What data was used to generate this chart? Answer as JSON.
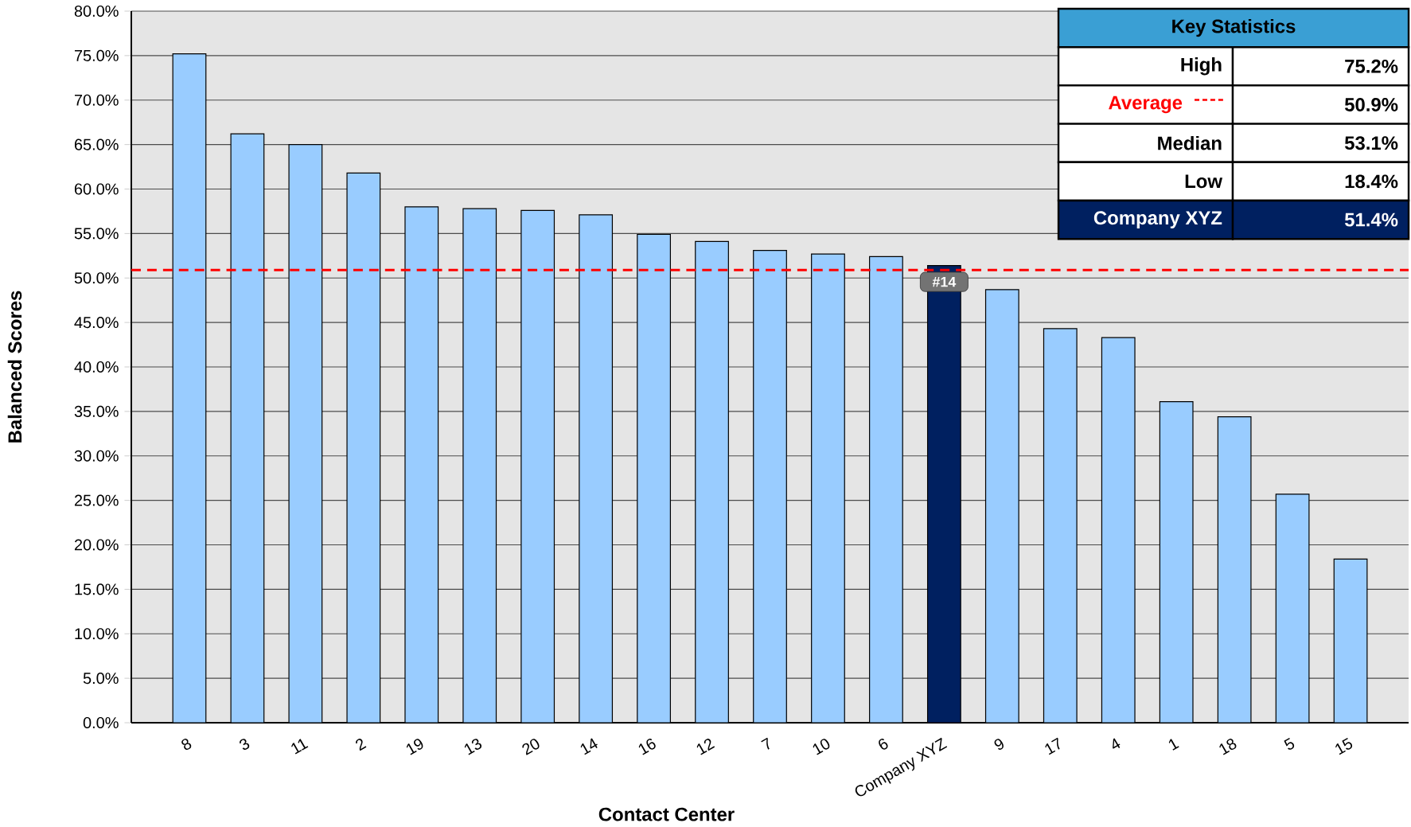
{
  "chart_data": {
    "type": "bar",
    "xlabel": "Contact Center",
    "ylabel": "Balanced Scores",
    "categories": [
      "8",
      "3",
      "11",
      "2",
      "19",
      "13",
      "20",
      "14",
      "16",
      "12",
      "7",
      "10",
      "6",
      "Company XYZ",
      "9",
      "17",
      "4",
      "1",
      "18",
      "5",
      "15"
    ],
    "values": [
      75.2,
      66.2,
      65.0,
      61.8,
      58.0,
      57.8,
      57.6,
      57.1,
      54.9,
      54.1,
      53.1,
      52.7,
      52.4,
      51.4,
      48.7,
      44.3,
      43.3,
      36.1,
      34.4,
      25.7,
      18.4
    ],
    "colors": [
      "#99ccff",
      "#99ccff",
      "#99ccff",
      "#99ccff",
      "#99ccff",
      "#99ccff",
      "#99ccff",
      "#99ccff",
      "#99ccff",
      "#99ccff",
      "#99ccff",
      "#99ccff",
      "#99ccff",
      "#002060",
      "#99ccff",
      "#99ccff",
      "#99ccff",
      "#99ccff",
      "#99ccff",
      "#99ccff",
      "#99ccff"
    ],
    "ylim": [
      0,
      80
    ],
    "yticks": [
      {
        "value": 0,
        "label": "0.0%"
      },
      {
        "value": 5,
        "label": "5.0%"
      },
      {
        "value": 10,
        "label": "10.0%"
      },
      {
        "value": 15,
        "label": "15.0%"
      },
      {
        "value": 20,
        "label": "20.0%"
      },
      {
        "value": 25,
        "label": "25.0%"
      },
      {
        "value": 30,
        "label": "30.0%"
      },
      {
        "value": 35,
        "label": "35.0%"
      },
      {
        "value": 40,
        "label": "40.0%"
      },
      {
        "value": 45,
        "label": "45.0%"
      },
      {
        "value": 50,
        "label": "50.0%"
      },
      {
        "value": 55,
        "label": "55.0%"
      },
      {
        "value": 60,
        "label": "60.0%"
      },
      {
        "value": 65,
        "label": "65.0%"
      },
      {
        "value": 70,
        "label": "70.0%"
      },
      {
        "value": 75,
        "label": "75.0%"
      },
      {
        "value": 80,
        "label": "80.0%"
      }
    ],
    "grid": "y",
    "legend": "top right",
    "ref_lines": [
      {
        "axis": "y",
        "value": 50.9,
        "label": "Average",
        "color": "#ff0000",
        "line_style": "dashed"
      }
    ],
    "annotations": [
      "Key Statistics",
      "High",
      "75.2%",
      "50.9%",
      "Median",
      "53.1%",
      "Low",
      "18.4%",
      "Company XYZ",
      "51.4%",
      {
        "text": "#14",
        "x": "Company XYZ",
        "y": 51.4
      }
    ]
  }
}
